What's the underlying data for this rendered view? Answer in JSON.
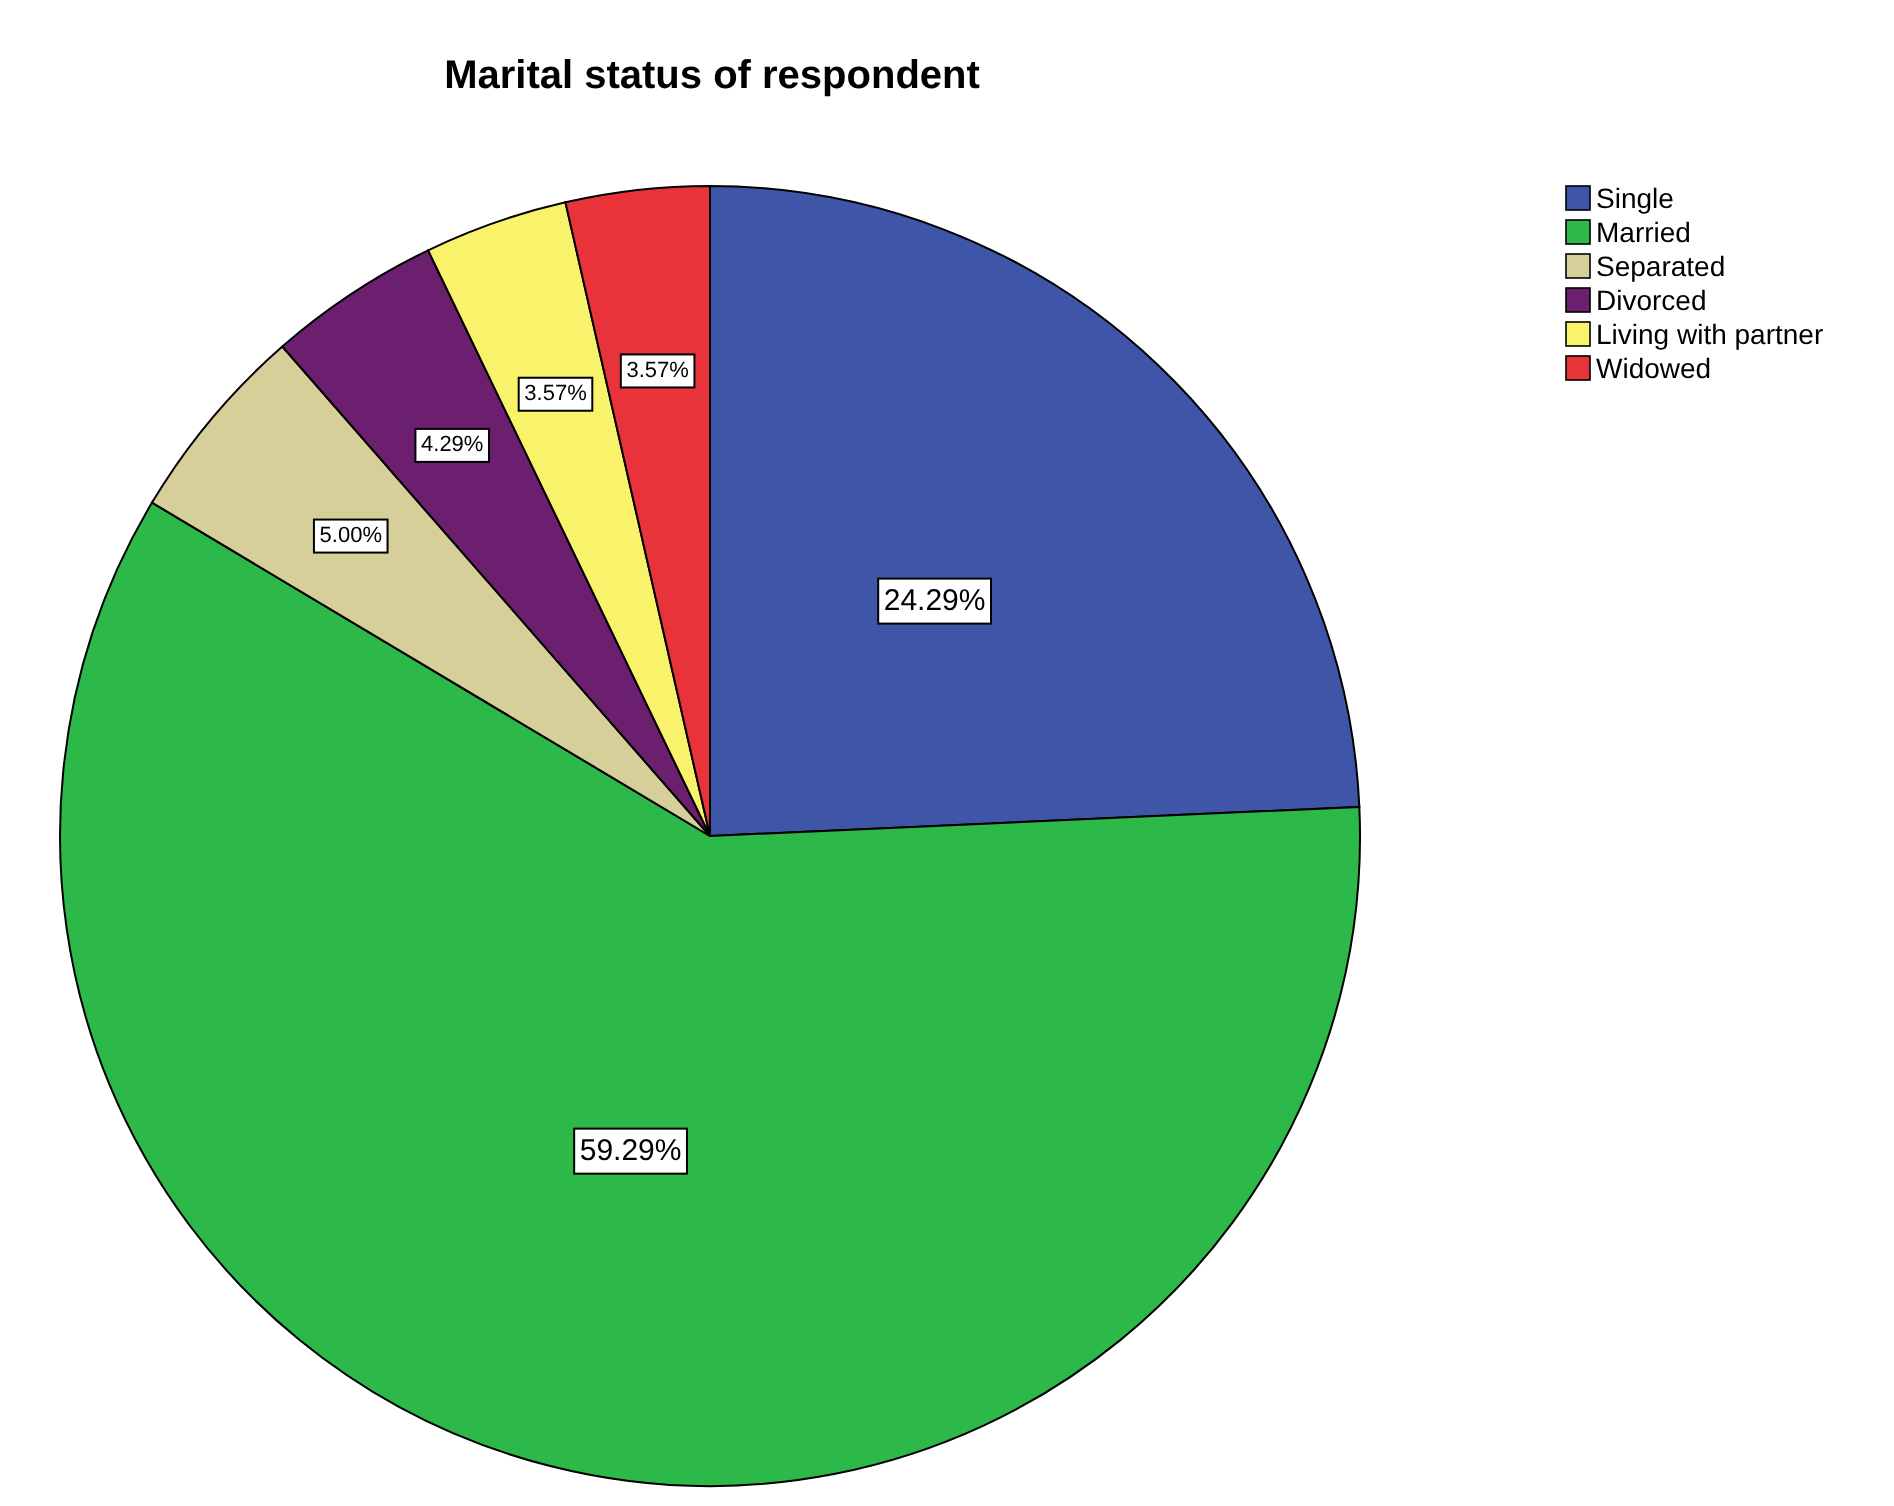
{
  "chart_data": {
    "type": "pie",
    "title": "Marital status of respondent",
    "categories": [
      "Single",
      "Married",
      "Separated",
      "Divorced",
      "Living with partner",
      "Widowed"
    ],
    "values": [
      24.29,
      59.29,
      5.0,
      4.29,
      3.57,
      3.57
    ],
    "value_labels": [
      "24.29%",
      "59.29%",
      "5.00%",
      "4.29%",
      "3.57%",
      "3.57%"
    ],
    "colors": [
      "#3f56a8",
      "#2db84a",
      "#d6cf9a",
      "#6b1f6e",
      "#f8f36a",
      "#e8333a"
    ],
    "legend": "top right"
  }
}
